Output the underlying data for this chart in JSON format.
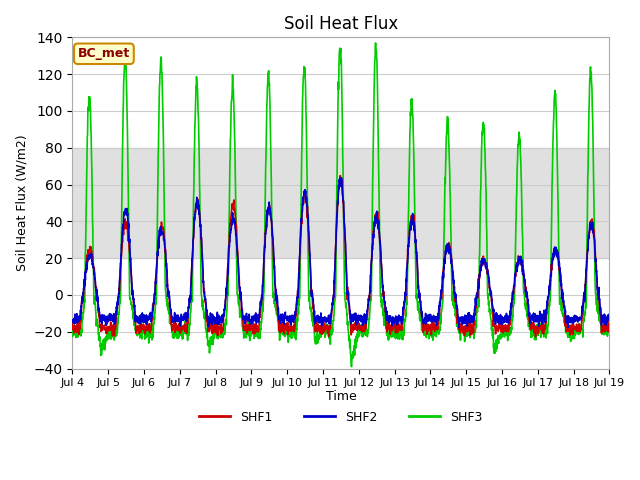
{
  "title": "Soil Heat Flux",
  "ylabel": "Soil Heat Flux (W/m2)",
  "xlabel": "Time",
  "ylim": [
    -40,
    140
  ],
  "yticks": [
    -40,
    -20,
    0,
    20,
    40,
    60,
    80,
    100,
    120,
    140
  ],
  "xtick_labels": [
    "Jul 4",
    "Jul 5",
    "Jul 6",
    "Jul 7",
    "Jul 8",
    "Jul 9",
    "Jul 10",
    "Jul 11",
    "Jul 12",
    "Jul 13",
    "Jul 14",
    "Jul 15",
    "Jul 16",
    "Jul 17",
    "Jul 18",
    "Jul 19"
  ],
  "shaded_region": [
    20,
    80
  ],
  "shaded_color": "#e0e0e0",
  "bg_color": "#ffffff",
  "line_colors": {
    "SHF1": "#cc0000",
    "SHF2": "#0000cc",
    "SHF3": "#00cc00"
  },
  "line_widths": {
    "SHF1": 1.2,
    "SHF2": 1.2,
    "SHF3": 1.2
  },
  "annotation_box": "BC_met",
  "annotation_box_bg": "#ffffcc",
  "annotation_box_border": "#cc8800",
  "legend_labels": [
    "SHF1",
    "SHF2",
    "SHF3"
  ],
  "legend_colors": [
    "#cc0000",
    "#0000cc",
    "#00cc00"
  ],
  "num_days": 15,
  "points_per_day": 144,
  "shf3_peaks": [
    108,
    130,
    128,
    116,
    115,
    119,
    125,
    136,
    135,
    105,
    93,
    95,
    87,
    109,
    122
  ],
  "shf1_peaks": [
    25,
    40,
    38,
    52,
    50,
    47,
    55,
    63,
    44,
    42,
    28,
    20,
    20,
    25,
    40
  ],
  "shf2_peaks": [
    22,
    47,
    37,
    52,
    42,
    48,
    57,
    64,
    43,
    42,
    27,
    20,
    20,
    25,
    38
  ],
  "shf3_troughs": [
    -30,
    -20,
    -20,
    -27,
    -20,
    -20,
    -25,
    -35,
    -22,
    -20,
    -20,
    -30,
    -20,
    -20,
    -20
  ],
  "shf1_night": -18,
  "shf2_night": -13
}
